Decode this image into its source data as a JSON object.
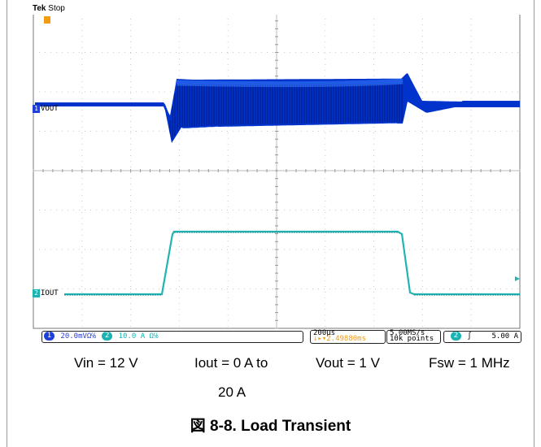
{
  "scope": {
    "brand": "Tek",
    "run_state": "Stop",
    "ch1_name": "VOUT",
    "ch2_name": "IOUT",
    "ch1_number": "1",
    "ch2_number": "2",
    "trigger_marker": "T",
    "ch1_scale": "20.0mVΩ℅",
    "ch2_scale": "10.0 A  Ω℅",
    "timebase": "200µs",
    "trigger_pos": "↓▸▾2.49880ms",
    "sample_rate": "5.00MS/s",
    "record_length": "10k points",
    "trigger_channel": "2",
    "trigger_slope_icon": "rising-edge",
    "trigger_level": "5.00 A",
    "colors": {
      "ch1": "#0033cc",
      "ch2": "#22b3b3",
      "trigger": "#f39c12",
      "ch1_chip": "#1f3fd9",
      "ch2_chip": "#19b3b3"
    }
  },
  "conditions": [
    {
      "label": "Vin = 12 V"
    },
    {
      "label": "Iout = 0 A to",
      "label2": "20 A"
    },
    {
      "label": "Vout = 1 V"
    },
    {
      "label": "Fsw = 1 MHz"
    }
  ],
  "figure_caption": "図 8-8. Load Transient"
}
